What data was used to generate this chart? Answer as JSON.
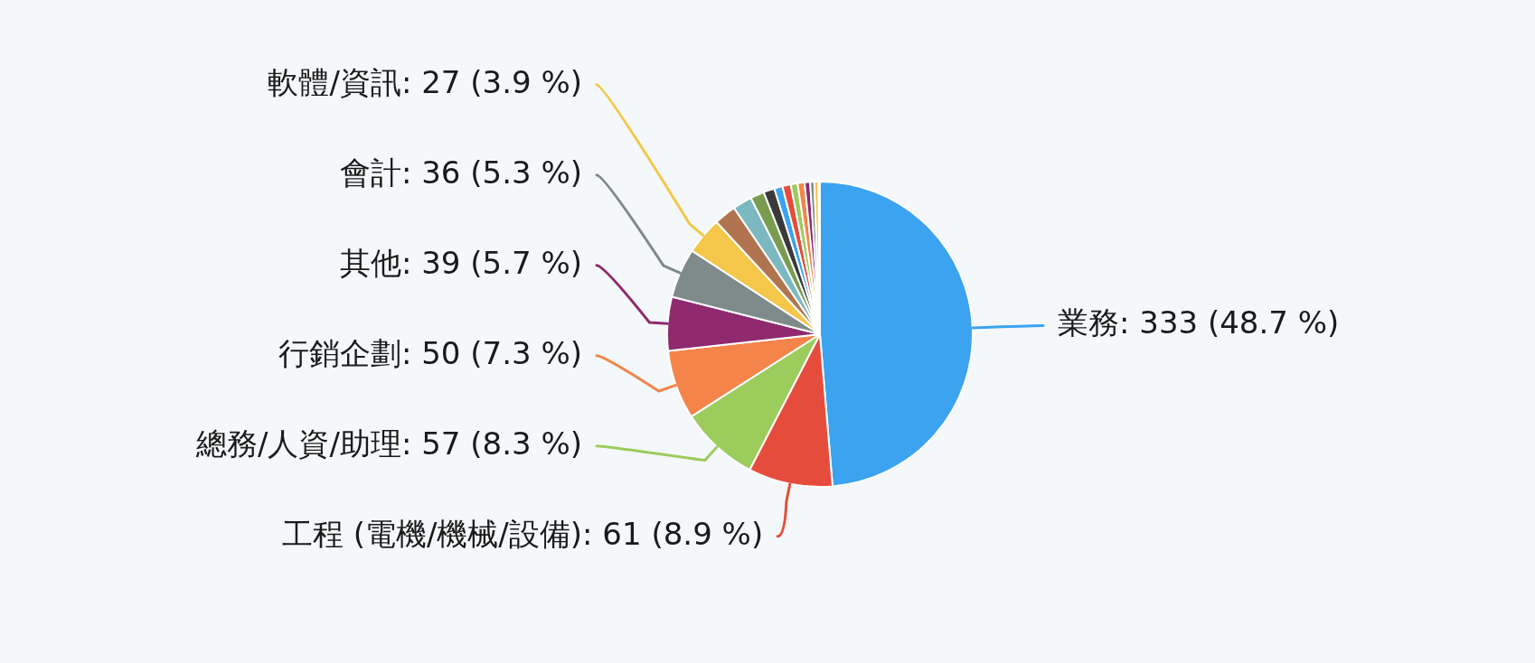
{
  "chart_data": {
    "type": "pie",
    "categories": [
      "業務",
      "工程 (電機/機械/設備)",
      "總務/人資/助理",
      "行銷企劃",
      "其他",
      "會計",
      "軟體/資訊",
      null,
      null,
      null,
      null,
      null,
      null,
      null,
      null,
      null,
      null,
      null,
      null
    ],
    "values": [
      333,
      61,
      57,
      50,
      39,
      36,
      27,
      16,
      14,
      10,
      8,
      6,
      6,
      5,
      5,
      4,
      3,
      3,
      1
    ],
    "value_labels": [
      "333 (48.7 %)",
      "61 (8.9 %)",
      "57 (8.3 %)",
      "50 (7.3 %)",
      "39 (5.7 %)",
      "36 (5.3 %)",
      "27 (3.9 %)",
      null,
      null,
      null,
      null,
      null,
      null,
      null,
      null,
      null,
      null,
      null,
      null
    ],
    "colors": [
      "#3ba3f0",
      "#e64c3c",
      "#9ccc5c",
      "#f5844a",
      "#8f2a6e",
      "#7f8a8a",
      "#f4c74a",
      "#b07550",
      "#7bb8c0",
      "#7a9c50",
      "#3a3a3a",
      "#3ba3f0",
      "#e64c3c",
      "#9ccc5c",
      "#f5844a",
      "#8f2a6e",
      "#7f8a8a",
      "#f4c74a",
      "#f0e0c8"
    ],
    "legend": false
  }
}
